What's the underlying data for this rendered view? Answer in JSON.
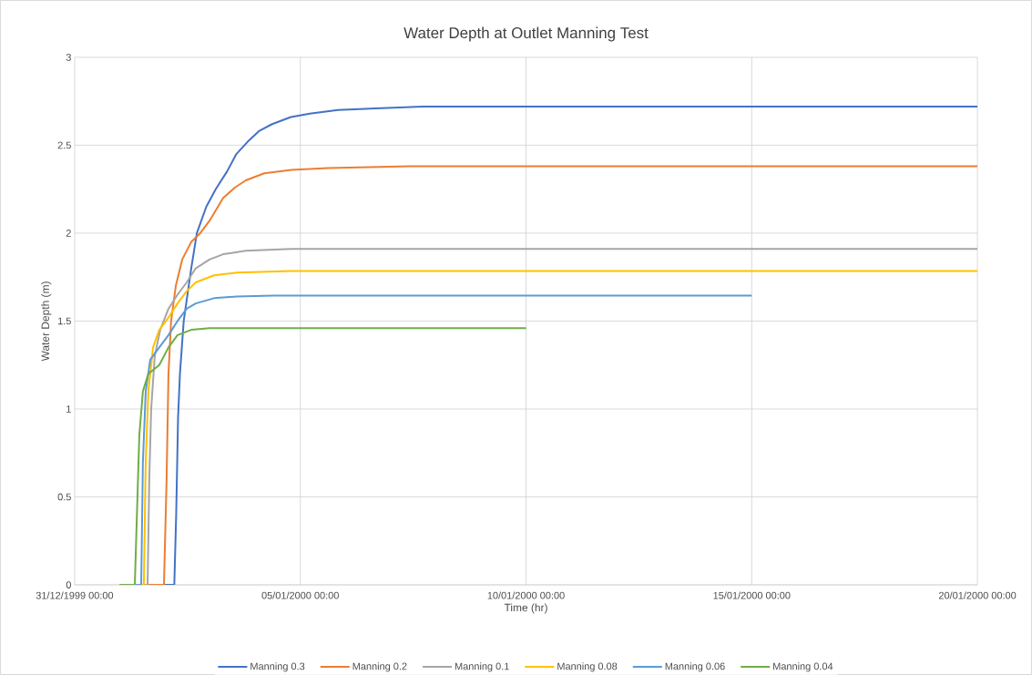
{
  "chart_data": {
    "type": "line",
    "title": "Water Depth at Outlet Manning Test",
    "xlabel": "Time (hr)",
    "ylabel": "Water Depth (m)",
    "xlim": [
      "1999-12-31T00:00",
      "2000-01-20T00:00"
    ],
    "xticks": [
      {
        "value": "1999-12-31T00:00",
        "label": "31/12/1999 00:00"
      },
      {
        "value": "2000-01-05T00:00",
        "label": "05/01/2000 00:00"
      },
      {
        "value": "2000-01-10T00:00",
        "label": "10/01/2000 00:00"
      },
      {
        "value": "2000-01-15T00:00",
        "label": "15/01/2000 00:00"
      },
      {
        "value": "2000-01-20T00:00",
        "label": "20/01/2000 00:00"
      }
    ],
    "ylim": [
      0,
      3
    ],
    "yticks": [
      0,
      0.5,
      1,
      1.5,
      2,
      2.5,
      3
    ],
    "grid": true,
    "legend": "bottom",
    "marker": "none",
    "line_style": "solid",
    "series": [
      {
        "name": "Manning 0.3",
        "color": "#4472c4",
        "x": [
          "2000-01-01T00:00",
          "2000-01-02T05:00",
          "2000-01-02T06:00",
          "2000-01-02T07:00",
          "2000-01-02T08:00",
          "2000-01-02T10:00",
          "2000-01-02T14:00",
          "2000-01-02T17:00",
          "2000-01-02T22:00",
          "2000-01-03T03:00",
          "2000-01-03T09:00",
          "2000-01-03T14:00",
          "2000-01-03T20:00",
          "2000-01-04T02:00",
          "2000-01-04T09:00",
          "2000-01-04T19:00",
          "2000-01-05T05:00",
          "2000-01-05T20:00",
          "2000-01-06T16:00",
          "2000-01-07T17:00",
          "2000-01-20T00:00"
        ],
        "values": [
          0,
          0,
          0.4,
          0.95,
          1.2,
          1.5,
          1.8,
          2.0,
          2.15,
          2.25,
          2.35,
          2.45,
          2.52,
          2.58,
          2.62,
          2.66,
          2.68,
          2.7,
          2.71,
          2.72,
          2.72
        ]
      },
      {
        "name": "Manning 0.2",
        "color": "#ed7d31",
        "x": [
          "2000-01-01T00:00",
          "2000-01-01T23:30",
          "2000-01-02T00:54",
          "2000-01-02T01:54",
          "2000-01-02T03:18",
          "2000-01-02T05:48",
          "2000-01-02T09:12",
          "2000-01-02T14:00",
          "2000-01-02T18:48",
          "2000-01-02T23:42",
          "2000-01-03T07:00",
          "2000-01-03T13:18",
          "2000-01-03T19:00",
          "2000-01-04T04:48",
          "2000-01-04T19:18",
          "2000-01-05T14:42",
          "2000-01-07T10:18",
          "2000-01-20T00:00"
        ],
        "values": [
          0,
          0,
          0.6,
          1.2,
          1.5,
          1.7,
          1.85,
          1.95,
          2.0,
          2.07,
          2.2,
          2.26,
          2.3,
          2.34,
          2.36,
          2.37,
          2.38,
          2.38
        ]
      },
      {
        "name": "Manning 0.1",
        "color": "#a5a5a5",
        "x": [
          "2000-01-01T00:00",
          "2000-01-01T14:48",
          "2000-01-01T15:42",
          "2000-01-01T16:42",
          "2000-01-01T18:36",
          "2000-01-01T21:30",
          "2000-01-02T01:54",
          "2000-01-02T06:42",
          "2000-01-02T11:36",
          "2000-01-02T16:24",
          "2000-01-02T23:42",
          "2000-01-03T07:00",
          "2000-01-03T19:00",
          "2000-01-04T19:18",
          "2000-01-20T00:00"
        ],
        "values": [
          0,
          0,
          0.6,
          1.0,
          1.3,
          1.45,
          1.57,
          1.65,
          1.72,
          1.8,
          1.85,
          1.88,
          1.9,
          1.91,
          1.91
        ]
      },
      {
        "name": "Manning 0.08",
        "color": "#ffc000",
        "x": [
          "2000-01-01T00:00",
          "2000-01-01T12:48",
          "2000-01-01T13:48",
          "2000-01-01T15:12",
          "2000-01-01T17:42",
          "2000-01-01T21:00",
          "2000-01-02T01:54",
          "2000-01-02T06:42",
          "2000-01-02T11:36",
          "2000-01-02T16:24",
          "2000-01-03T02:06",
          "2000-01-03T14:12",
          "2000-01-04T19:18",
          "2000-01-20T00:00"
        ],
        "values": [
          0,
          0,
          0.7,
          1.1,
          1.35,
          1.45,
          1.52,
          1.6,
          1.67,
          1.72,
          1.76,
          1.775,
          1.785,
          1.785
        ]
      },
      {
        "name": "Manning 0.06",
        "color": "#5b9bd5",
        "x": [
          "2000-01-01T00:00",
          "2000-01-01T11:24",
          "2000-01-01T12:18",
          "2000-01-01T13:48",
          "2000-01-01T16:12",
          "2000-01-01T21:00",
          "2000-01-02T01:54",
          "2000-01-02T06:42",
          "2000-01-02T11:36",
          "2000-01-02T16:24",
          "2000-01-03T02:06",
          "2000-01-03T14:12",
          "2000-01-04T09:36",
          "2000-01-15T00:00"
        ],
        "values": [
          0,
          0,
          0.7,
          1.1,
          1.28,
          1.35,
          1.42,
          1.5,
          1.57,
          1.6,
          1.63,
          1.64,
          1.645,
          1.645
        ]
      },
      {
        "name": "Manning 0.04",
        "color": "#70ad47",
        "x": [
          "2000-01-01T00:00",
          "2000-01-01T08:00",
          "2000-01-01T10:24",
          "2000-01-01T12:18",
          "2000-01-01T15:12",
          "2000-01-01T21:00",
          "2000-01-02T01:54",
          "2000-01-02T06:42",
          "2000-01-02T14:00",
          "2000-01-02T23:42",
          "2000-01-10T00:00"
        ],
        "values": [
          0,
          0,
          0.85,
          1.1,
          1.2,
          1.25,
          1.35,
          1.42,
          1.45,
          1.46,
          1.46
        ]
      }
    ]
  }
}
